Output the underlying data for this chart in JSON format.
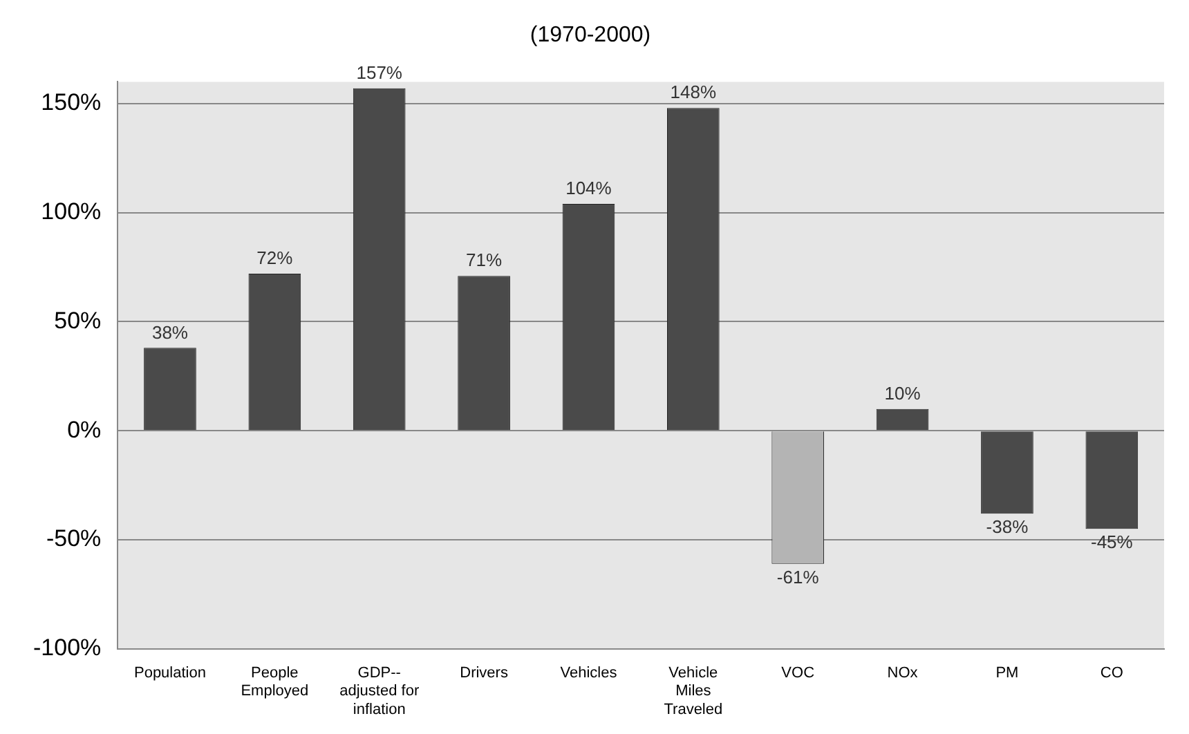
{
  "chart_data": {
    "type": "bar",
    "title": "(1970-2000)",
    "categories": [
      "Population",
      "People Employed",
      "GDP-- adjusted for inflation",
      "Drivers",
      "Vehicles",
      "Vehicle Miles Traveled",
      "VOC",
      "NOx",
      "PM",
      "CO"
    ],
    "values": [
      38,
      72,
      157,
      71,
      104,
      148,
      -61,
      10,
      -38,
      -45
    ],
    "colors": [
      "#4a4a4a",
      "#4a4a4a",
      "#4a4a4a",
      "#4a4a4a",
      "#4a4a4a",
      "#4a4a4a",
      "#b4b4b4",
      "#4a4a4a",
      "#4a4a4a",
      "#4a4a4a"
    ],
    "value_labels": [
      "38%",
      "72%",
      "157%",
      "71%",
      "104%",
      "148%",
      "-61%",
      "10%",
      "-38%",
      "-45%"
    ],
    "ylim": [
      -100,
      160
    ],
    "yticks": [
      {
        "value": -100,
        "label": "-100%"
      },
      {
        "value": -50,
        "label": "-50%"
      },
      {
        "value": 0,
        "label": "0%"
      },
      {
        "value": 50,
        "label": "50%"
      },
      {
        "value": 100,
        "label": "100%"
      },
      {
        "value": 150,
        "label": "150%"
      }
    ],
    "grid": "y",
    "legend": false
  }
}
